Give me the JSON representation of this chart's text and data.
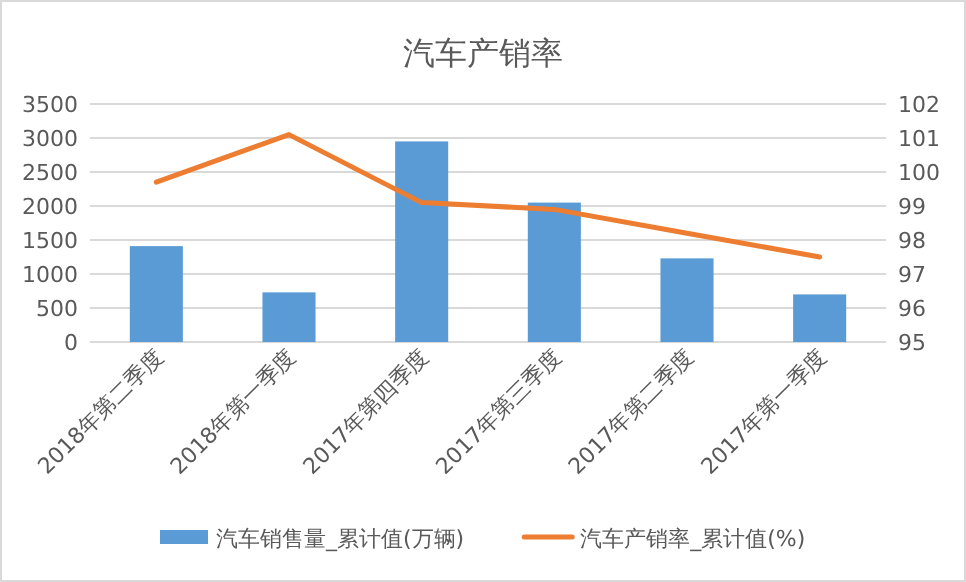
{
  "chart_data": {
    "type": "bar",
    "title": "汽车产销率",
    "categories": [
      "2018年第二季度",
      "2018年第一季度",
      "2017年第四季度",
      "2017年第三季度",
      "2017年第二季度",
      "2017年第一季度"
    ],
    "series": [
      {
        "name": "汽车销售量_累计值(万辆)",
        "color": "#5b9bd5",
        "values": [
          1410,
          730,
          2950,
          2050,
          1230,
          700
        ]
      },
      {
        "name": "汽车产销率_累计值(%)",
        "type": "line",
        "axis": "y2",
        "color": "#ed7d31",
        "values": [
          99.7,
          101.1,
          99.1,
          98.9,
          98.2,
          97.5
        ]
      }
    ],
    "ylim": [
      0,
      3500
    ],
    "yticks": [
      0,
      500,
      1000,
      1500,
      2000,
      2500,
      3000,
      3500
    ],
    "y2lim": [
      95,
      102
    ],
    "y2ticks": [
      95,
      96,
      97,
      98,
      99,
      100,
      101,
      102
    ],
    "grid": "y",
    "legend": "bottom",
    "marker": "none",
    "line_style": "solid"
  }
}
